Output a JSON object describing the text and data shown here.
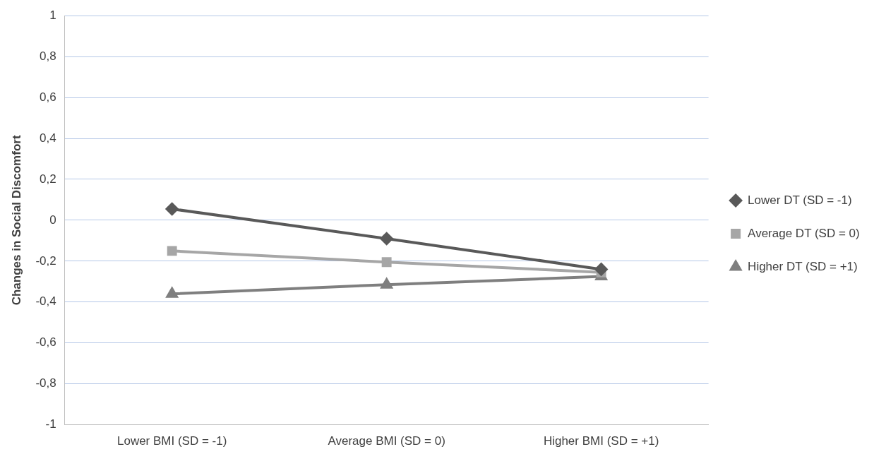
{
  "chart_data": {
    "type": "line",
    "ylabel": "Changes in Social Discomfort",
    "categories": [
      "Lower BMI (SD = -1)",
      "Average BMI (SD = 0)",
      "Higher BMI (SD = +1)"
    ],
    "series": [
      {
        "name": "Lower DT (SD = -1)",
        "color": "#595959",
        "marker": "diamond",
        "values": [
          0.055,
          -0.09,
          -0.24
        ]
      },
      {
        "name": "Average DT (SD = 0)",
        "color": "#a6a6a6",
        "marker": "square",
        "values": [
          -0.15,
          -0.205,
          -0.255
        ]
      },
      {
        "name": "Higher DT (SD = +1)",
        "color": "#7f7f7f",
        "marker": "triangle",
        "values": [
          -0.36,
          -0.315,
          -0.275
        ]
      }
    ],
    "ylim": [
      -1,
      1
    ],
    "yticks": [
      -1,
      {
        "value": -0.8,
        "label": "-0,8"
      },
      {
        "value": -0.6,
        "label": "-0,6"
      },
      {
        "value": -0.4,
        "label": "-0,4"
      },
      {
        "value": -0.2,
        "label": "-0,2"
      },
      0,
      {
        "value": 0.2,
        "label": "0,2"
      },
      {
        "value": 0.4,
        "label": "0,4"
      },
      {
        "value": 0.6,
        "label": "0,6"
      },
      {
        "value": 0.8,
        "label": "0,8"
      },
      1
    ],
    "grid": "y",
    "legend": "right",
    "line_style": "solid"
  }
}
